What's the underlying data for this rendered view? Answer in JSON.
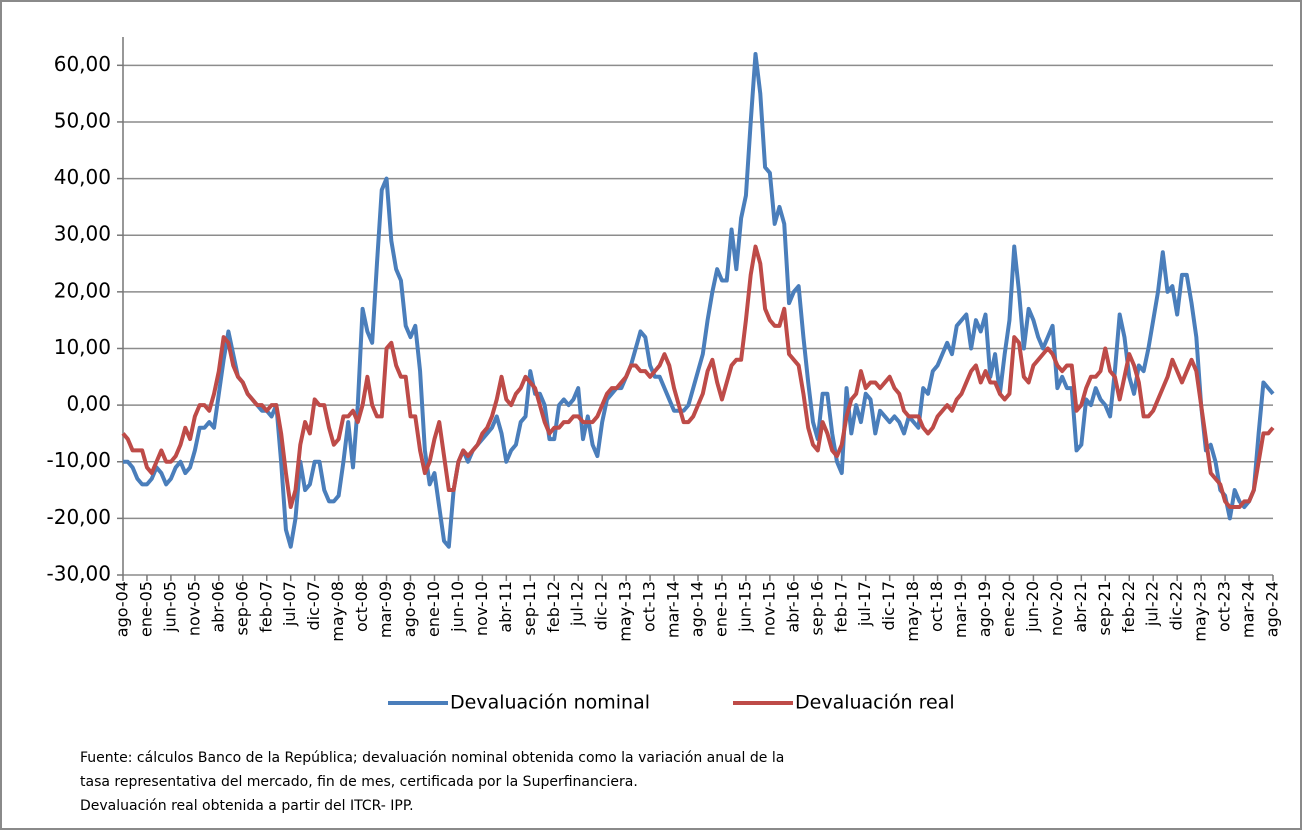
{
  "chart_data": {
    "type": "line",
    "categories": [
      "ago-04",
      null,
      null,
      null,
      null,
      "ene-05",
      null,
      null,
      null,
      null,
      "jun-05",
      null,
      null,
      null,
      null,
      "nov-05",
      null,
      null,
      null,
      null,
      "abr-06",
      null,
      null,
      null,
      null,
      "sep-06",
      null,
      null,
      null,
      null,
      "feb-07",
      null,
      null,
      null,
      null,
      "jul-07",
      null,
      null,
      null,
      null,
      "dic-07",
      null,
      null,
      null,
      null,
      "may-08",
      null,
      null,
      null,
      null,
      "oct-08",
      null,
      null,
      null,
      null,
      "mar-09",
      null,
      null,
      null,
      null,
      "ago-09",
      null,
      null,
      null,
      null,
      "ene-10",
      null,
      null,
      null,
      null,
      "jun-10",
      null,
      null,
      null,
      null,
      "nov-10",
      null,
      null,
      null,
      null,
      "abr-11",
      null,
      null,
      null,
      null,
      "sep-11",
      null,
      null,
      null,
      null,
      "feb-12",
      null,
      null,
      null,
      null,
      "jul-12",
      null,
      null,
      null,
      null,
      "dic-12",
      null,
      null,
      null,
      null,
      "may-13",
      null,
      null,
      null,
      null,
      "oct-13",
      null,
      null,
      null,
      null,
      "mar-14",
      null,
      null,
      null,
      null,
      "ago-14",
      null,
      null,
      null,
      null,
      "ene-15",
      null,
      null,
      null,
      null,
      "jun-15",
      null,
      null,
      null,
      null,
      "nov-15",
      null,
      null,
      null,
      null,
      "abr-16",
      null,
      null,
      null,
      null,
      "sep-16",
      null,
      null,
      null,
      null,
      "feb-17",
      null,
      null,
      null,
      null,
      "jul-17",
      null,
      null,
      null,
      null,
      "dic-17",
      null,
      null,
      null,
      null,
      "may-18",
      null,
      null,
      null,
      null,
      "oct-18",
      null,
      null,
      null,
      null,
      "mar-19",
      null,
      null,
      null,
      null,
      "ago-19",
      null,
      null,
      null,
      null,
      "ene-20",
      null,
      null,
      null,
      null,
      "jun-20",
      null,
      null,
      null,
      null,
      "nov-20",
      null,
      null,
      null,
      null,
      "abr-21",
      null,
      null,
      null,
      null,
      "sep-21",
      null,
      null,
      null,
      null,
      "feb-22",
      null,
      null,
      null,
      null,
      "jul-22",
      null,
      null,
      null,
      null,
      "dic-22",
      null,
      null,
      null,
      null,
      "may-23",
      null,
      null,
      null,
      null,
      "oct-23",
      null,
      null,
      null,
      null,
      "mar-24",
      null,
      null,
      null,
      null,
      "ago-24"
    ],
    "series": [
      {
        "name": "Devaluación nominal",
        "color": "#4a7ebb",
        "values": [
          -10,
          -10,
          -11,
          -13,
          -14,
          -14,
          -13,
          -11,
          -12,
          -14,
          -13,
          -11,
          -10,
          -12,
          -11,
          -8,
          -4,
          -4,
          -3,
          -4,
          2,
          8,
          13,
          9,
          5,
          4,
          2,
          1,
          0,
          -1,
          -1,
          -2,
          0,
          -10,
          -22,
          -25,
          -20,
          -10,
          -15,
          -14,
          -10,
          -10,
          -15,
          -17,
          -17,
          -16,
          -10,
          -3,
          -11,
          0,
          17,
          13,
          11,
          25,
          38,
          40,
          29,
          24,
          22,
          14,
          12,
          14,
          6,
          -8,
          -14,
          -12,
          -18,
          -24,
          -25,
          -15,
          -10,
          -8,
          -10,
          -8,
          -7,
          -6,
          -5,
          -4,
          -2,
          -5,
          -10,
          -8,
          -7,
          -3,
          -2,
          6,
          2,
          2,
          0,
          -6,
          -6,
          0,
          1,
          0,
          1,
          3,
          -6,
          -2,
          -7,
          -9,
          -3,
          1,
          2,
          3,
          3,
          5,
          7,
          10,
          13,
          12,
          7,
          5,
          5,
          3,
          1,
          -1,
          -1,
          -1,
          0,
          3,
          6,
          9,
          15,
          20,
          24,
          22,
          22,
          31,
          24,
          33,
          37,
          50,
          62,
          55,
          42,
          41,
          32,
          35,
          32,
          18,
          20,
          21,
          12,
          4,
          -3,
          -6,
          2,
          2,
          -5,
          -10,
          -12,
          3,
          -5,
          0,
          -3,
          2,
          1,
          -5,
          -1,
          -2,
          -3,
          -2,
          -3,
          -5,
          -2,
          -3,
          -4,
          3,
          2,
          6,
          7,
          9,
          11,
          9,
          14,
          15,
          16,
          10,
          15,
          13,
          16,
          5,
          9,
          2,
          9,
          15,
          28,
          20,
          10,
          17,
          15,
          12,
          10,
          12,
          14,
          3,
          5,
          3,
          3,
          -8,
          -7,
          1,
          0,
          3,
          1,
          0,
          -2,
          6,
          16,
          12,
          5,
          2,
          7,
          6,
          10,
          15,
          20,
          27,
          20,
          21,
          16,
          23,
          23,
          18,
          12,
          0,
          -8,
          -7,
          -10,
          -15,
          -16,
          -20,
          -15,
          -17,
          -18,
          -17,
          -15,
          -5,
          4,
          3,
          2
        ]
      },
      {
        "name": "Devaluación real",
        "color": "#be4b48",
        "values": [
          -5,
          -6,
          -8,
          -8,
          -8,
          -11,
          -12,
          -10,
          -8,
          -10,
          -10,
          -9,
          -7,
          -4,
          -6,
          -2,
          0,
          0,
          -1,
          2,
          6,
          12,
          11,
          7,
          5,
          4,
          2,
          1,
          0,
          0,
          -1,
          0,
          0,
          -5,
          -12,
          -18,
          -15,
          -7,
          -3,
          -5,
          1,
          0,
          0,
          -4,
          -7,
          -6,
          -2,
          -2,
          -1,
          -3,
          0,
          5,
          0,
          -2,
          -2,
          10,
          11,
          7,
          5,
          5,
          -2,
          -2,
          -8,
          -12,
          -10,
          -6,
          -3,
          -9,
          -15,
          -15,
          -10,
          -8,
          -9,
          -8,
          -7,
          -5,
          -4,
          -2,
          1,
          5,
          1,
          0,
          2,
          3,
          5,
          4,
          3,
          0,
          -3,
          -5,
          -4,
          -4,
          -3,
          -3,
          -2,
          -2,
          -3,
          -3,
          -3,
          -2,
          0,
          2,
          3,
          3,
          4,
          5,
          7,
          7,
          6,
          6,
          5,
          6,
          7,
          9,
          7,
          3,
          0,
          -3,
          -3,
          -2,
          0,
          2,
          6,
          8,
          4,
          1,
          4,
          7,
          8,
          8,
          15,
          23,
          28,
          25,
          17,
          15,
          14,
          14,
          17,
          9,
          8,
          7,
          2,
          -4,
          -7,
          -8,
          -3,
          -5,
          -8,
          -9,
          -7,
          -2,
          1,
          2,
          6,
          3,
          4,
          4,
          3,
          4,
          5,
          3,
          2,
          -1,
          -2,
          -2,
          -2,
          -4,
          -5,
          -4,
          -2,
          -1,
          0,
          -1,
          1,
          2,
          4,
          6,
          7,
          4,
          6,
          4,
          4,
          2,
          1,
          2,
          12,
          11,
          5,
          4,
          7,
          8,
          9,
          10,
          9,
          7,
          6,
          7,
          7,
          -1,
          0,
          3,
          5,
          5,
          6,
          10,
          6,
          5,
          1,
          5,
          9,
          7,
          4,
          -2,
          -2,
          -1,
          1,
          3,
          5,
          8,
          6,
          4,
          6,
          8,
          6,
          0,
          -6,
          -12,
          -13,
          -14,
          -17,
          -18,
          -18,
          -18,
          -17,
          -17,
          -15,
          -10,
          -5,
          -5,
          -4
        ]
      }
    ],
    "ylim": [
      -30,
      65
    ],
    "yticks": [
      {
        "value": -30,
        "label": "-30,00"
      },
      {
        "value": -20,
        "label": "-20,00"
      },
      {
        "value": -10,
        "label": "-10,00"
      },
      {
        "value": 0,
        "label": "0,00"
      },
      {
        "value": 10,
        "label": "10,00"
      },
      {
        "value": 20,
        "label": "20,00"
      },
      {
        "value": 30,
        "label": "30,00"
      },
      {
        "value": 40,
        "label": "40,00"
      },
      {
        "value": 50,
        "label": "50,00"
      },
      {
        "value": 60,
        "label": "60,00"
      }
    ],
    "grid": true,
    "legend": "bottom",
    "notes": [
      "Fuente: cálculos Banco de la República; devaluación nominal obtenida como la variación anual de la",
      "tasa representativa del mercado, fin de mes, certificada por la Superfinanciera.",
      "Devaluación real obtenida a partir del ITCR- IPP."
    ]
  }
}
